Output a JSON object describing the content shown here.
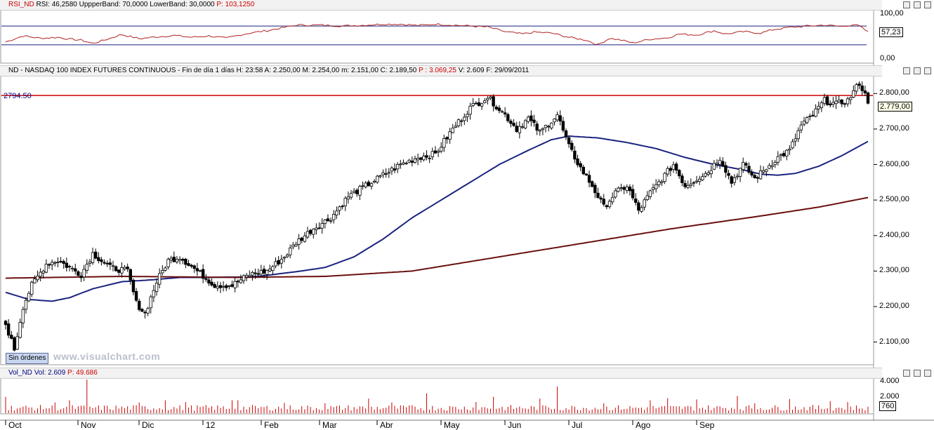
{
  "rsi_panel": {
    "symbol": "RSI_ND",
    "rsi_label": "RSI: 46,2580",
    "upper_label": "UppperBand: 70,0000",
    "lower_label": "LowerBand: 30,0000",
    "p_label": "P: 103,1250",
    "axis_top": "100,00",
    "axis_bottom": "0,00",
    "current_value": "57,23"
  },
  "price_panel": {
    "header_main": "ND - NASDAQ 100 INDEX FUTURES CONTINUOUS - Fin de día 1 días  H: 23:58  A: 2.250,00  M: 2.254,00  m: 2.151,00  C: 2.189,50",
    "header_p": "P : 3.069,25",
    "header_tail": "V: 2.609  F: 29/09/2011",
    "reference_line_label": "2794.50",
    "current_price": "2.779,00",
    "sin_ordenes": "Sin órdenes",
    "watermark": "www.visualchart.com"
  },
  "volume_panel": {
    "symbol": "Vol_ND",
    "vol_label": "Vol: 2.609",
    "p_label": "P: 49.686",
    "axis_top": "4.000",
    "axis_mid": "2.000",
    "current_value": "760"
  },
  "colors": {
    "price_line": "#cc0000",
    "ma_short": "#1a237e",
    "ma_long": "#6b0f0f",
    "band": "#1a237e",
    "rsi": "#b22222",
    "volume": "#cc0000"
  },
  "chart_data": {
    "type": "candlestick",
    "reference_line": 2794.5,
    "y_ticks": [
      "2.800,00",
      "2.700,00",
      "2.600,00",
      "2.500,00",
      "2.400,00",
      "2.300,00",
      "2.200,00",
      "2.100,00"
    ],
    "y_tick_values": [
      2800,
      2700,
      2600,
      2500,
      2400,
      2300,
      2200,
      2100
    ],
    "ylim": [
      2040,
      2850
    ],
    "x_ticks": [
      "Oct",
      "Nov",
      "Dic",
      "12",
      "Feb",
      "Mar",
      "Abr",
      "May",
      "Jun",
      "Jul",
      "Ago",
      "Sep"
    ],
    "closes_anchors": [
      [
        0,
        2150
      ],
      [
        3,
        2080
      ],
      [
        6,
        2200
      ],
      [
        9,
        2260
      ],
      [
        14,
        2320
      ],
      [
        18,
        2330
      ],
      [
        22,
        2310
      ],
      [
        26,
        2290
      ],
      [
        30,
        2350
      ],
      [
        36,
        2310
      ],
      [
        42,
        2300
      ],
      [
        45,
        2210
      ],
      [
        48,
        2180
      ],
      [
        52,
        2270
      ],
      [
        56,
        2330
      ],
      [
        60,
        2340
      ],
      [
        66,
        2300
      ],
      [
        72,
        2260
      ],
      [
        78,
        2260
      ],
      [
        84,
        2290
      ],
      [
        90,
        2300
      ],
      [
        96,
        2340
      ],
      [
        100,
        2380
      ],
      [
        106,
        2420
      ],
      [
        112,
        2450
      ],
      [
        118,
        2510
      ],
      [
        124,
        2540
      ],
      [
        130,
        2570
      ],
      [
        136,
        2600
      ],
      [
        142,
        2620
      ],
      [
        148,
        2630
      ],
      [
        154,
        2700
      ],
      [
        160,
        2760
      ],
      [
        166,
        2790
      ],
      [
        172,
        2740
      ],
      [
        176,
        2700
      ],
      [
        180,
        2730
      ],
      [
        184,
        2690
      ],
      [
        190,
        2740
      ],
      [
        194,
        2650
      ],
      [
        198,
        2590
      ],
      [
        202,
        2540
      ],
      [
        206,
        2480
      ],
      [
        210,
        2520
      ],
      [
        214,
        2540
      ],
      [
        218,
        2470
      ],
      [
        222,
        2520
      ],
      [
        226,
        2560
      ],
      [
        230,
        2600
      ],
      [
        234,
        2540
      ],
      [
        238,
        2560
      ],
      [
        242,
        2580
      ],
      [
        246,
        2620
      ],
      [
        250,
        2550
      ],
      [
        254,
        2600
      ],
      [
        258,
        2560
      ],
      [
        262,
        2590
      ],
      [
        266,
        2620
      ],
      [
        270,
        2640
      ],
      [
        274,
        2710
      ],
      [
        278,
        2740
      ],
      [
        282,
        2780
      ],
      [
        286,
        2770
      ],
      [
        290,
        2780
      ],
      [
        294,
        2830
      ],
      [
        297,
        2779
      ]
    ],
    "ma_short_anchors": [
      [
        0,
        2240
      ],
      [
        8,
        2220
      ],
      [
        16,
        2215
      ],
      [
        22,
        2225
      ],
      [
        30,
        2250
      ],
      [
        40,
        2270
      ],
      [
        50,
        2275
      ],
      [
        60,
        2282
      ],
      [
        70,
        2282
      ],
      [
        76,
        2283
      ],
      [
        82,
        2283
      ],
      [
        88,
        2286
      ],
      [
        94,
        2292
      ],
      [
        100,
        2298
      ],
      [
        110,
        2310
      ],
      [
        120,
        2340
      ],
      [
        130,
        2390
      ],
      [
        140,
        2450
      ],
      [
        150,
        2500
      ],
      [
        160,
        2550
      ],
      [
        170,
        2600
      ],
      [
        180,
        2640
      ],
      [
        188,
        2670
      ],
      [
        194,
        2680
      ],
      [
        204,
        2675
      ],
      [
        214,
        2662
      ],
      [
        224,
        2645
      ],
      [
        234,
        2620
      ],
      [
        244,
        2600
      ],
      [
        254,
        2585
      ],
      [
        260,
        2573
      ],
      [
        266,
        2570
      ],
      [
        272,
        2575
      ],
      [
        280,
        2595
      ],
      [
        288,
        2625
      ],
      [
        297,
        2665
      ]
    ],
    "ma_long_anchors": [
      [
        0,
        2280
      ],
      [
        40,
        2285
      ],
      [
        80,
        2282
      ],
      [
        110,
        2285
      ],
      [
        140,
        2300
      ],
      [
        170,
        2340
      ],
      [
        200,
        2380
      ],
      [
        230,
        2420
      ],
      [
        260,
        2455
      ],
      [
        280,
        2480
      ],
      [
        297,
        2507
      ]
    ],
    "rsi": {
      "ylim": [
        0,
        100
      ],
      "upper_band": 70,
      "lower_band": 30,
      "current": 57.23,
      "anchors": [
        [
          0,
          36
        ],
        [
          6,
          49
        ],
        [
          12,
          44
        ],
        [
          18,
          46
        ],
        [
          22,
          42
        ],
        [
          26,
          40
        ],
        [
          30,
          33
        ],
        [
          34,
          40
        ],
        [
          40,
          52
        ],
        [
          46,
          43
        ],
        [
          52,
          47
        ],
        [
          58,
          50
        ],
        [
          64,
          46
        ],
        [
          70,
          49
        ],
        [
          76,
          44
        ],
        [
          80,
          50
        ],
        [
          84,
          55
        ],
        [
          90,
          60
        ],
        [
          96,
          67
        ],
        [
          100,
          72
        ],
        [
          108,
          72
        ],
        [
          116,
          70
        ],
        [
          124,
          72
        ],
        [
          130,
          74
        ],
        [
          136,
          74
        ],
        [
          142,
          71
        ],
        [
          148,
          74
        ],
        [
          154,
          72
        ],
        [
          160,
          70
        ],
        [
          166,
          68
        ],
        [
          172,
          58
        ],
        [
          178,
          53
        ],
        [
          182,
          57
        ],
        [
          188,
          55
        ],
        [
          194,
          46
        ],
        [
          200,
          40
        ],
        [
          204,
          30
        ],
        [
          208,
          44
        ],
        [
          212,
          40
        ],
        [
          216,
          34
        ],
        [
          222,
          42
        ],
        [
          228,
          45
        ],
        [
          232,
          53
        ],
        [
          238,
          51
        ],
        [
          244,
          60
        ],
        [
          248,
          53
        ],
        [
          254,
          58
        ],
        [
          260,
          55
        ],
        [
          264,
          62
        ],
        [
          270,
          67
        ],
        [
          276,
          70
        ],
        [
          282,
          72
        ],
        [
          288,
          69
        ],
        [
          292,
          73
        ],
        [
          294,
          70
        ],
        [
          297,
          57
        ]
      ]
    },
    "volume": {
      "ylim": [
        0,
        4000
      ],
      "current": 760,
      "spikes": {
        "0": 1900,
        "17": 1250,
        "22": 1500,
        "28": 3900,
        "46": 1250,
        "55": 1500,
        "62": 1300,
        "78": 1500,
        "80": 1500,
        "96": 1200,
        "110": 1150,
        "125": 1700,
        "133": 1250,
        "145": 2300,
        "162": 1300,
        "168": 1900,
        "184": 1700,
        "190": 3100,
        "206": 1150,
        "222": 1500,
        "228": 1750,
        "238": 1600,
        "252": 2000,
        "258": 1150,
        "270": 1650,
        "284": 1400,
        "290": 1300,
        "297": 760
      }
    }
  }
}
